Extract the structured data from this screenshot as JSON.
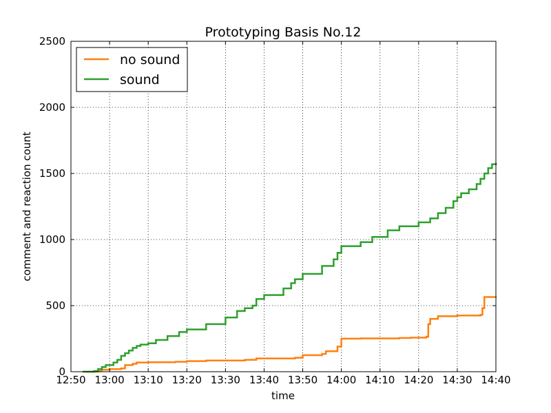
{
  "chart_data": {
    "type": "line",
    "title": "Prototyping Basis No.12",
    "xlabel": "time",
    "ylabel": "comment and reaction count",
    "xlim": [
      "12:50",
      "14:40"
    ],
    "ylim": [
      0,
      2500
    ],
    "xticks": [
      "12:50",
      "13:00",
      "13:10",
      "13:20",
      "13:30",
      "13:40",
      "13:50",
      "14:00",
      "14:10",
      "14:20",
      "14:30",
      "14:40"
    ],
    "yticks": [
      0,
      500,
      1000,
      1500,
      2000,
      2500
    ],
    "grid": true,
    "legend_position": "top-left",
    "step": true,
    "series": [
      {
        "name": "no sound",
        "color": "#ff7f0e",
        "points": [
          [
            "12:54",
            0
          ],
          [
            "12:57",
            5
          ],
          [
            "12:58",
            15
          ],
          [
            "13:00",
            20
          ],
          [
            "13:03",
            25
          ],
          [
            "13:04",
            50
          ],
          [
            "13:06",
            60
          ],
          [
            "13:07",
            70
          ],
          [
            "13:10",
            72
          ],
          [
            "13:17",
            75
          ],
          [
            "13:20",
            80
          ],
          [
            "13:25",
            85
          ],
          [
            "13:35",
            90
          ],
          [
            "13:38",
            100
          ],
          [
            "13:48",
            105
          ],
          [
            "13:50",
            125
          ],
          [
            "13:55",
            135
          ],
          [
            "13:56",
            155
          ],
          [
            "13:59",
            190
          ],
          [
            "14:00",
            250
          ],
          [
            "14:05",
            252
          ],
          [
            "14:15",
            255
          ],
          [
            "14:18",
            258
          ],
          [
            "14:22",
            265
          ],
          [
            "14:22.5",
            360
          ],
          [
            "14:23",
            400
          ],
          [
            "14:25",
            420
          ],
          [
            "14:30",
            425
          ],
          [
            "14:36",
            430
          ],
          [
            "14:36.5",
            480
          ],
          [
            "14:37",
            565
          ],
          [
            "14:40",
            570
          ]
        ]
      },
      {
        "name": "sound",
        "color": "#2ca02c",
        "points": [
          [
            "12:53",
            0
          ],
          [
            "12:56",
            5
          ],
          [
            "12:57",
            20
          ],
          [
            "12:58",
            35
          ],
          [
            "12:59",
            50
          ],
          [
            "13:01",
            70
          ],
          [
            "13:02",
            90
          ],
          [
            "13:03",
            120
          ],
          [
            "13:04",
            140
          ],
          [
            "13:05",
            160
          ],
          [
            "13:06",
            180
          ],
          [
            "13:07",
            195
          ],
          [
            "13:08",
            205
          ],
          [
            "13:10",
            215
          ],
          [
            "13:12",
            240
          ],
          [
            "13:15",
            270
          ],
          [
            "13:18",
            300
          ],
          [
            "13:20",
            320
          ],
          [
            "13:25",
            360
          ],
          [
            "13:30",
            410
          ],
          [
            "13:33",
            460
          ],
          [
            "13:35",
            480
          ],
          [
            "13:37",
            500
          ],
          [
            "13:38",
            550
          ],
          [
            "13:40",
            580
          ],
          [
            "13:45",
            630
          ],
          [
            "13:47",
            670
          ],
          [
            "13:48",
            700
          ],
          [
            "13:50",
            740
          ],
          [
            "13:55",
            800
          ],
          [
            "13:58",
            850
          ],
          [
            "13:59",
            900
          ],
          [
            "14:00",
            950
          ],
          [
            "14:05",
            980
          ],
          [
            "14:08",
            1020
          ],
          [
            "14:12",
            1070
          ],
          [
            "14:15",
            1100
          ],
          [
            "14:20",
            1130
          ],
          [
            "14:23",
            1160
          ],
          [
            "14:25",
            1200
          ],
          [
            "14:27",
            1240
          ],
          [
            "14:29",
            1290
          ],
          [
            "14:30",
            1320
          ],
          [
            "14:31",
            1350
          ],
          [
            "14:33",
            1380
          ],
          [
            "14:35",
            1420
          ],
          [
            "14:36",
            1460
          ],
          [
            "14:37",
            1500
          ],
          [
            "14:38",
            1540
          ],
          [
            "14:39",
            1570
          ],
          [
            "14:40",
            1580
          ]
        ]
      }
    ]
  }
}
